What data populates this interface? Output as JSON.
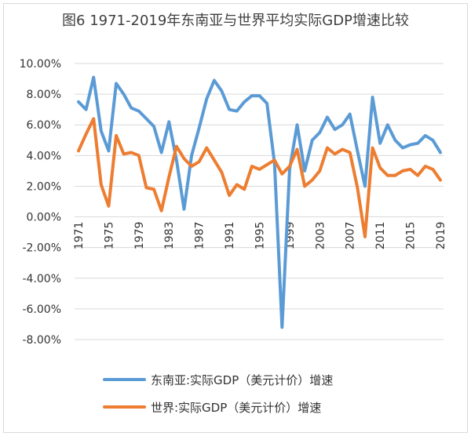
{
  "chart_data": {
    "type": "line",
    "title": "图6 1971-2019年东南亚与世界平均实际GDP增速比较",
    "x": [
      1971,
      1972,
      1973,
      1974,
      1975,
      1976,
      1977,
      1978,
      1979,
      1980,
      1981,
      1982,
      1983,
      1984,
      1985,
      1986,
      1987,
      1988,
      1989,
      1990,
      1991,
      1992,
      1993,
      1994,
      1995,
      1996,
      1997,
      1998,
      1999,
      2000,
      2001,
      2002,
      2003,
      2004,
      2005,
      2006,
      2007,
      2008,
      2009,
      2010,
      2011,
      2012,
      2013,
      2014,
      2015,
      2016,
      2017,
      2018,
      2019
    ],
    "x_tick_labels": [
      "1971",
      "1975",
      "1979",
      "1983",
      "1987",
      "1991",
      "1995",
      "1999",
      "2003",
      "2007",
      "2011",
      "2015",
      "2019"
    ],
    "y_tick_labels": [
      "10.00%",
      "8.00%",
      "6.00%",
      "4.00%",
      "2.00%",
      "0.00%",
      "-2.00%",
      "-4.00%",
      "-6.00%",
      "-8.00%"
    ],
    "ylim": [
      -8,
      10
    ],
    "y_unit": "%",
    "grid": true,
    "legend_position": "bottom",
    "series": [
      {
        "name": "东南亚:实际GDP（美元计价）增速",
        "color": "#5b9bd5",
        "values": [
          7.5,
          7.0,
          9.1,
          5.6,
          4.3,
          8.7,
          8.0,
          7.1,
          6.9,
          6.4,
          5.9,
          4.2,
          6.2,
          3.7,
          0.5,
          4.0,
          5.8,
          7.7,
          8.9,
          8.2,
          7.0,
          6.9,
          7.5,
          7.9,
          7.9,
          7.4,
          3.5,
          -7.2,
          3.1,
          6.0,
          3.0,
          5.0,
          5.5,
          6.5,
          5.7,
          6.0,
          6.7,
          4.3,
          2.0,
          7.8,
          4.8,
          6.0,
          5.0,
          4.5,
          4.7,
          4.8,
          5.3,
          5.0,
          4.2
        ]
      },
      {
        "name": "世界:实际GDP（美元计价）增速",
        "color": "#ed7d31",
        "values": [
          4.3,
          5.4,
          6.4,
          2.1,
          0.7,
          5.3,
          4.1,
          4.2,
          4.0,
          1.9,
          1.8,
          0.4,
          2.6,
          4.6,
          3.8,
          3.3,
          3.6,
          4.5,
          3.7,
          2.9,
          1.4,
          2.1,
          1.8,
          3.3,
          3.1,
          3.4,
          3.7,
          2.8,
          3.3,
          4.4,
          2.0,
          2.4,
          3.0,
          4.5,
          4.1,
          4.4,
          4.2,
          1.9,
          -1.3,
          4.5,
          3.2,
          2.7,
          2.7,
          3.0,
          3.1,
          2.7,
          3.3,
          3.1,
          2.4
        ]
      }
    ]
  }
}
